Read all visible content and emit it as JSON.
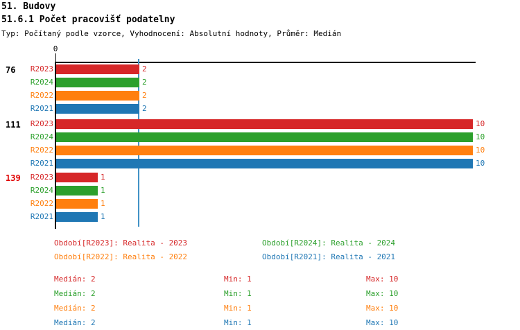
{
  "header": {
    "title": "51. Budovy",
    "subtitle": "51.6.1 Počet pracovišť podatelny",
    "meta": "Typ: Počítaný podle vzorce, Vyhodnocení: Absolutní hodnoty, Průměr: Medián"
  },
  "colors": {
    "red": "#d62728",
    "green": "#2ca02c",
    "orange": "#ff7f0e",
    "blue": "#1f77b4",
    "bright_red": "#e00000",
    "black": "#000000",
    "median_line": "#4292c6"
  },
  "chart_data": {
    "type": "bar",
    "orientation": "horizontal",
    "title": "51.6.1 Počet pracovišť podatelny",
    "x_axis": {
      "origin_tick_label": "0",
      "xlim": [
        0,
        10.1
      ],
      "grid": false
    },
    "median_line_value": 2,
    "series_labels": [
      "R2023",
      "R2024",
      "R2022",
      "R2021"
    ],
    "series_colors": [
      "#d62728",
      "#2ca02c",
      "#ff7f0e",
      "#1f77b4"
    ],
    "groups": [
      {
        "label": "76",
        "label_color": "#000000",
        "values": [
          2,
          2,
          2,
          2
        ]
      },
      {
        "label": "111",
        "label_color": "#000000",
        "values": [
          10,
          10,
          10,
          10
        ]
      },
      {
        "label": "139",
        "label_color": "#e00000",
        "values": [
          1,
          1,
          1,
          1
        ]
      }
    ],
    "legend": {
      "position": "bottom",
      "entries": [
        {
          "text": "Období[R2023]: Realita - 2023",
          "color": "#d62728"
        },
        {
          "text": "Období[R2024]: Realita - 2024",
          "color": "#2ca02c"
        },
        {
          "text": "Období[R2022]: Realita - 2022",
          "color": "#ff7f0e"
        },
        {
          "text": "Období[R2021]: Realita - 2021",
          "color": "#1f77b4"
        }
      ]
    },
    "stats": [
      {
        "median": "Medián: 2",
        "min": "Min: 1",
        "max": "Max: 10",
        "color": "#d62728"
      },
      {
        "median": "Medián: 2",
        "min": "Min: 1",
        "max": "Max: 10",
        "color": "#2ca02c"
      },
      {
        "median": "Medián: 2",
        "min": "Min: 1",
        "max": "Max: 10",
        "color": "#ff7f0e"
      },
      {
        "median": "Medián: 2",
        "min": "Min: 1",
        "max": "Max: 10",
        "color": "#1f77b4"
      }
    ]
  }
}
